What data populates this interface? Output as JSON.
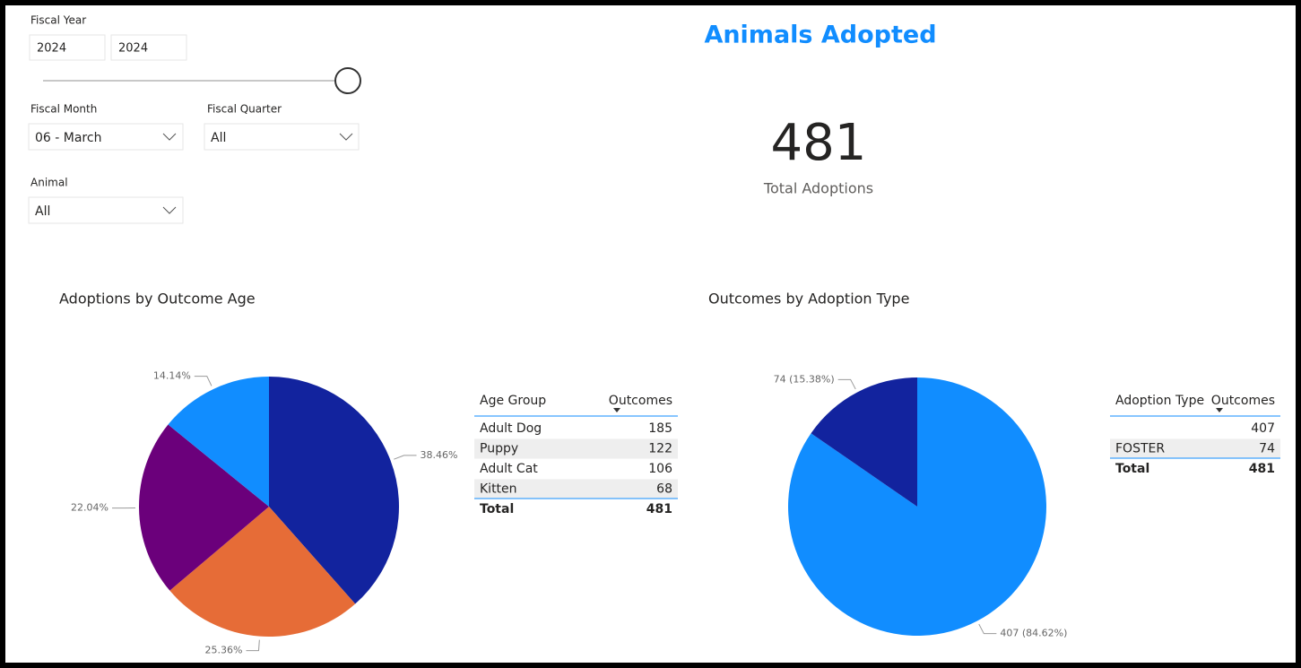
{
  "filters": {
    "fiscal_year": {
      "label": "Fiscal Year",
      "from": 2024,
      "to": 2024
    },
    "fiscal_month": {
      "label": "Fiscal Month",
      "value": "06 - March"
    },
    "fiscal_quarter": {
      "label": "Fiscal Quarter",
      "value": "All"
    },
    "animal": {
      "label": "Animal",
      "value": "All"
    }
  },
  "title": "Animals Adopted",
  "card": {
    "value": 481,
    "label": "Total Adoptions"
  },
  "chart_data": [
    {
      "type": "pie",
      "title": "Adoptions by Outcome Age",
      "values": [
        38.46,
        25.36,
        22.04,
        14.14
      ],
      "value_labels": [
        "38.46%",
        "25.36%",
        "22.04%",
        "14.14%"
      ],
      "colors": [
        "#12239e",
        "#e66c37",
        "#6b007b",
        "#118dff"
      ]
    },
    {
      "type": "pie",
      "title": "Outcomes by Adoption Type",
      "values": [
        407,
        74
      ],
      "value_labels": [
        "407 (84.62%)",
        "74 (15.38%)"
      ],
      "colors": [
        "#118dff",
        "#12239e"
      ]
    }
  ],
  "tables": [
    {
      "headers": [
        "Age Group",
        "Outcomes"
      ],
      "rows": [
        [
          "Adult Dog",
          185
        ],
        [
          "Puppy",
          122
        ],
        [
          "Adult Cat",
          106
        ],
        [
          "Kitten",
          68
        ]
      ],
      "total": [
        "Total",
        481
      ]
    },
    {
      "headers": [
        "Adoption Type",
        "Outcomes"
      ],
      "rows": [
        [
          null,
          407
        ],
        [
          "FOSTER",
          74
        ]
      ],
      "total": [
        "Total",
        481
      ]
    }
  ]
}
